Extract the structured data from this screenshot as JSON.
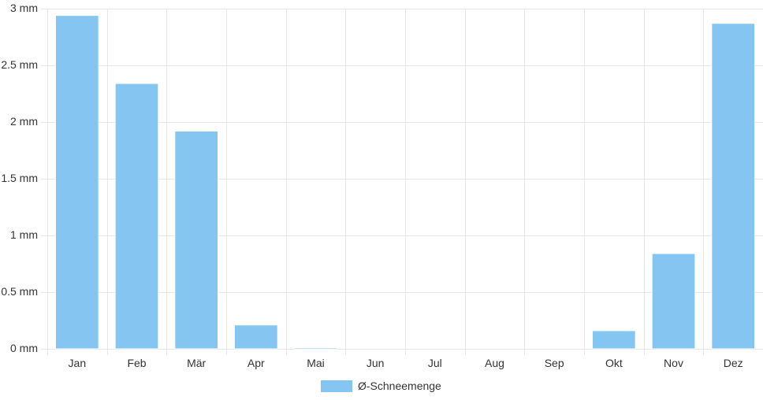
{
  "chart_data": {
    "type": "bar",
    "categories": [
      "Jan",
      "Feb",
      "Mär",
      "Apr",
      "Mai",
      "Jun",
      "Jul",
      "Aug",
      "Sep",
      "Okt",
      "Nov",
      "Dez"
    ],
    "series": [
      {
        "name": "Ø-Schneemenge",
        "values": [
          2.94,
          2.34,
          1.92,
          0.21,
          0.01,
          0,
          0,
          0,
          0,
          0.16,
          0.84,
          2.87
        ],
        "color": "#85c5f1",
        "border_color": "#ffffff"
      }
    ],
    "ylim": [
      0,
      3
    ],
    "y_ticks": [
      0,
      0.5,
      1,
      1.5,
      2,
      2.5,
      3
    ],
    "y_tick_labels": [
      "0 mm",
      "0.5 mm",
      "1 mm",
      "1.5 mm",
      "2 mm",
      "2.5 mm",
      "3 mm"
    ],
    "grid": true,
    "grid_color": "#e6e6e6",
    "legend_position": "bottom-center"
  }
}
